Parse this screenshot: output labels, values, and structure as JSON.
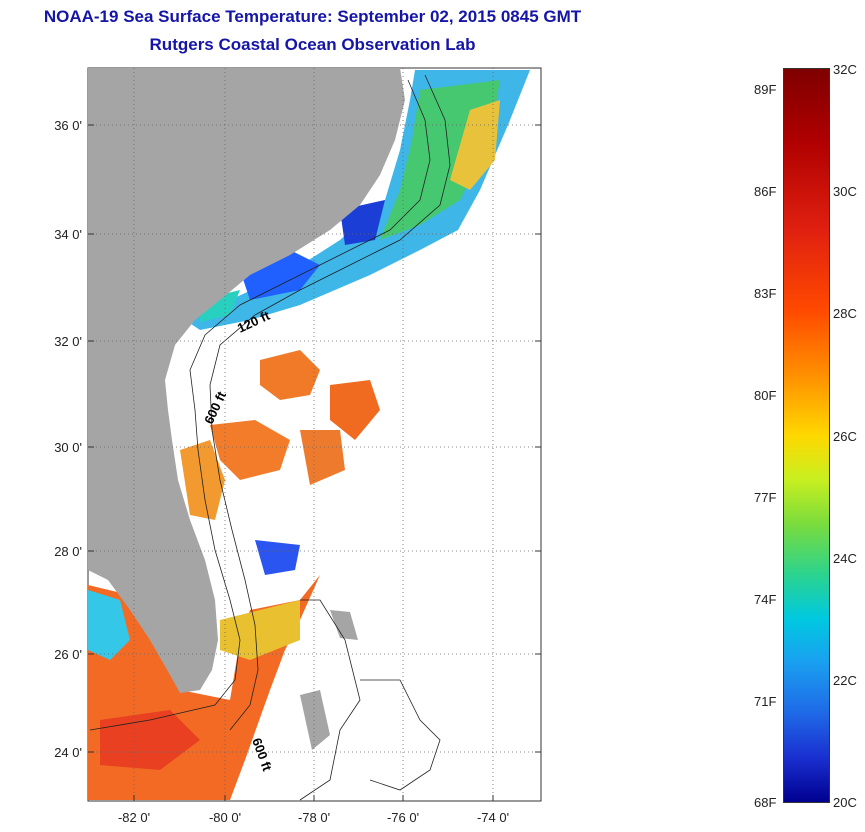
{
  "header": {
    "title": "NOAA-19 Sea Surface Temperature:  September 02, 2015 0845 GMT",
    "subtitle": "Rutgers Coastal Ocean Observation Lab"
  },
  "map": {
    "lat_labels": [
      "36 0'",
      "34 0'",
      "32 0'",
      "30 0'",
      "28 0'",
      "26 0'",
      "24 0'"
    ],
    "lon_labels": [
      "-82 0'",
      "-80 0'",
      "-78 0'",
      "-76 0'",
      "-74 0'"
    ],
    "contour_labels": [
      "120 ft",
      "600 ft",
      "600 ft"
    ]
  },
  "colorbar": {
    "fahrenheit": [
      "89F",
      "86F",
      "83F",
      "80F",
      "77F",
      "74F",
      "71F",
      "68F"
    ],
    "celsius": [
      "32C",
      "30C",
      "28C",
      "26C",
      "24C",
      "22C",
      "20C"
    ]
  },
  "colors": {
    "title": "#1515a8",
    "land": "#a5a5a5",
    "ocean_no_data": "#ffffff"
  }
}
